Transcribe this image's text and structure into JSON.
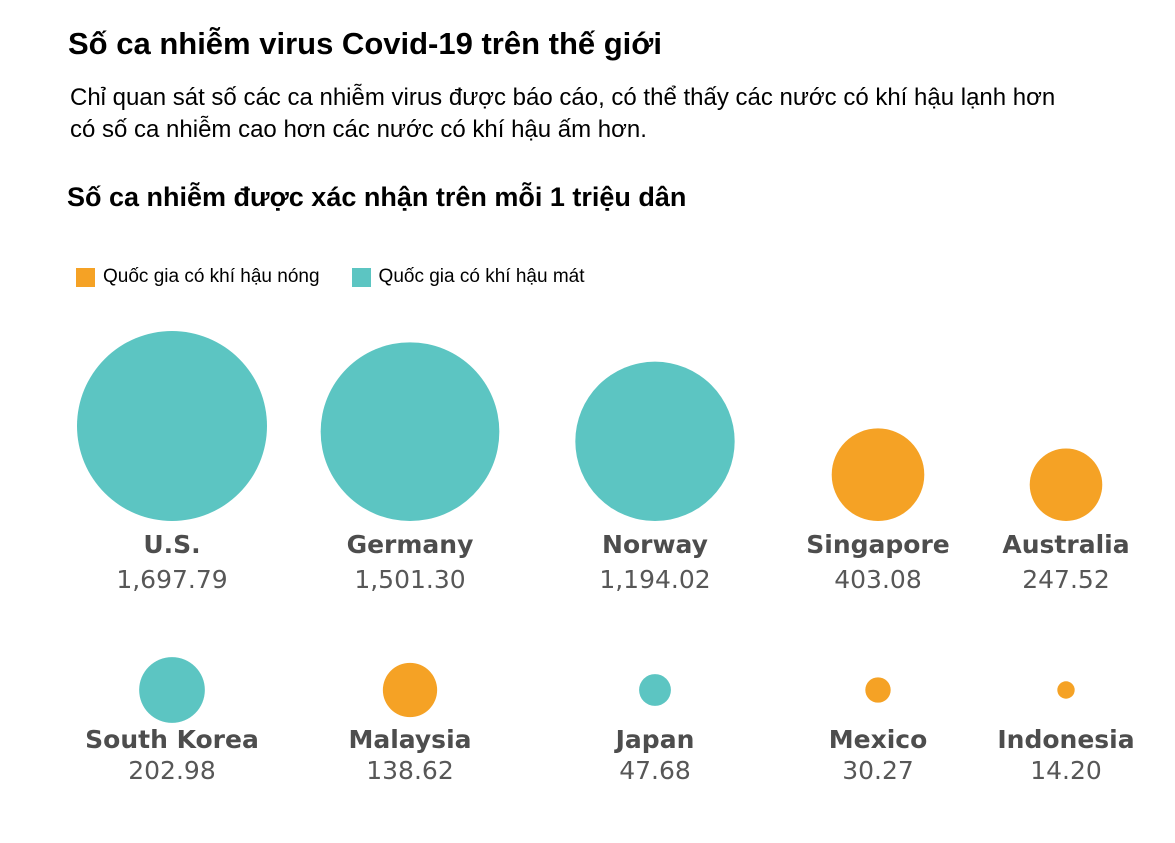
{
  "title": "Số ca nhiễm virus Covid-19 trên thế giới",
  "subtitle": "Chỉ quan sát số các ca nhiễm virus được báo cáo, có thể thấy các nước có khí hậu lạnh hơn có số ca nhiễm cao hơn các nước có khí hậu ấm hơn.",
  "chart_data": {
    "type": "bubble",
    "title": "Số ca nhiễm được xác nhận trên mỗi 1 triệu dân",
    "legend": {
      "placement": "top-left",
      "items": [
        {
          "key": "hot",
          "label": "Quốc gia có khí hậu nóng",
          "color": "#f5a225"
        },
        {
          "key": "cool",
          "label": "Quốc gia có khí hậu mát",
          "color": "#5cc5c2"
        }
      ]
    },
    "countries": [
      {
        "name": "U.S.",
        "value": 1697.79,
        "label": "1,697.79",
        "climate": "cool"
      },
      {
        "name": "Germany",
        "value": 1501.3,
        "label": "1,501.30",
        "climate": "cool"
      },
      {
        "name": "Norway",
        "value": 1194.02,
        "label": "1,194.02",
        "climate": "cool"
      },
      {
        "name": "Singapore",
        "value": 403.08,
        "label": "403.08",
        "climate": "hot"
      },
      {
        "name": "Australia",
        "value": 247.52,
        "label": "247.52",
        "climate": "hot"
      },
      {
        "name": "South Korea",
        "value": 202.98,
        "label": "202.98",
        "climate": "cool"
      },
      {
        "name": "Malaysia",
        "value": 138.62,
        "label": "138.62",
        "climate": "hot"
      },
      {
        "name": "Japan",
        "value": 47.68,
        "label": "47.68",
        "climate": "cool"
      },
      {
        "name": "Mexico",
        "value": 30.27,
        "label": "30.27",
        "climate": "hot"
      },
      {
        "name": "Indonesia",
        "value": 14.2,
        "label": "14.20",
        "climate": "hot"
      }
    ]
  }
}
